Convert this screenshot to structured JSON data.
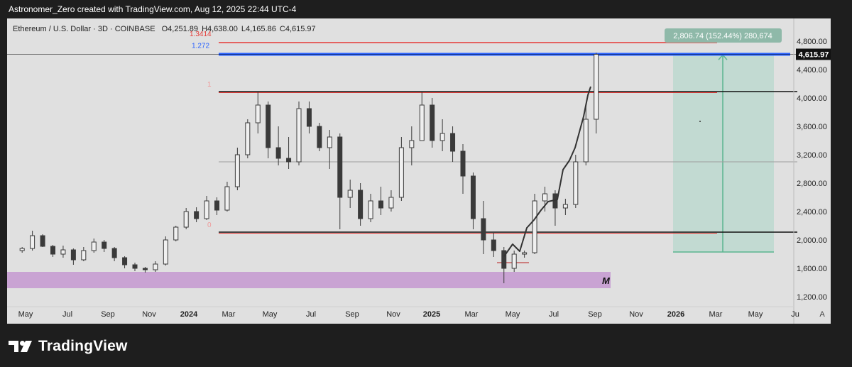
{
  "header": {
    "caption": "Astronomer_Zero created with TradingView.com, Aug 12, 2025 22:44 UTC-4"
  },
  "symbol": {
    "name": "Ethereum / U.S. Dollar",
    "interval": "3D",
    "exchange": "COINBASE",
    "open": "O4,251.89",
    "high": "H4,638.00",
    "low": "L4,165.86",
    "close": "C4,615.97"
  },
  "fib_labels": {
    "f1_3414": "1.3414",
    "f1_272": "1.272",
    "f1": "1",
    "f0": "0"
  },
  "measure_label": "2,806.74 (152.44%) 280,674",
  "price_tag": "4,615.97",
  "zone_label": "M",
  "footer": {
    "brand": "TradingView"
  },
  "colors": {
    "background": "#e0e0e0",
    "frame": "#1e1e1e",
    "candle": "#3a3a3a",
    "fib_red": "#e53935",
    "fib_blue": "#2962ff",
    "zone": "#c9a3d3",
    "measure_fill": "#bcd8cf",
    "measure_line": "#5bb58f"
  },
  "chart_data": {
    "type": "candlestick",
    "x_ticks": [
      "May",
      "Jul",
      "Sep",
      "Nov",
      "2024",
      "Mar",
      "May",
      "Jul",
      "Sep",
      "Nov",
      "2025",
      "Mar",
      "May",
      "Jul",
      "Sep",
      "Nov",
      "2026",
      "Mar",
      "May",
      "Ju"
    ],
    "y_ticks": [
      "4,800.00",
      "4,400.00",
      "4,000.00",
      "3,600.00",
      "3,200.00",
      "2,800.00",
      "2,400.00",
      "2,000.00",
      "1,600.00",
      "1,200.00"
    ],
    "ylim": [
      1000,
      5100
    ],
    "last_price": 4615.97,
    "horizontal_levels": [
      {
        "name": "fib 1.3414",
        "price": 4780,
        "color": "#e53935"
      },
      {
        "name": "fib 1.272",
        "price": 4615,
        "color": "#2962ff"
      },
      {
        "name": "fib 1 resistance",
        "price": 4090,
        "color": "#111111"
      },
      {
        "name": "mid level",
        "price": 3100,
        "color": "#9e9e9e"
      },
      {
        "name": "fib 0 support",
        "price": 2110,
        "color": "#111111"
      }
    ],
    "zone": {
      "low": 1320,
      "high": 1550,
      "color": "#c9a3d3"
    },
    "measure": {
      "from": 1830,
      "to": 4637,
      "change": 2806.74,
      "percent": 152.44
    },
    "series": [
      {
        "values": [
          [
            "2023-04-26",
            1850,
            1900,
            1820,
            1880
          ],
          [
            "2023-05-11",
            1880,
            2130,
            1850,
            2060
          ],
          [
            "2023-05-26",
            2060,
            2080,
            1900,
            1910
          ],
          [
            "2023-06-10",
            1910,
            1930,
            1760,
            1800
          ],
          [
            "2023-06-25",
            1800,
            1920,
            1750,
            1860
          ],
          [
            "2023-07-10",
            1860,
            1880,
            1650,
            1720
          ],
          [
            "2023-07-25",
            1720,
            1900,
            1700,
            1850
          ],
          [
            "2023-08-09",
            1850,
            2020,
            1820,
            1970
          ],
          [
            "2023-08-24",
            1970,
            2000,
            1830,
            1880
          ],
          [
            "2023-09-08",
            1880,
            1900,
            1700,
            1750
          ],
          [
            "2023-09-23",
            1750,
            1770,
            1600,
            1650
          ],
          [
            "2023-10-08",
            1650,
            1680,
            1560,
            1600
          ],
          [
            "2023-10-23",
            1600,
            1620,
            1540,
            1580
          ],
          [
            "2023-11-07",
            1580,
            1700,
            1550,
            1660
          ],
          [
            "2023-11-22",
            1660,
            2050,
            1640,
            2000
          ],
          [
            "2023-12-07",
            2000,
            2200,
            1980,
            2180
          ],
          [
            "2023-12-22",
            2180,
            2450,
            2150,
            2400
          ],
          [
            "2024-01-06",
            2400,
            2460,
            2250,
            2300
          ],
          [
            "2024-01-21",
            2300,
            2620,
            2280,
            2550
          ],
          [
            "2024-02-05",
            2550,
            2600,
            2350,
            2420
          ],
          [
            "2024-02-20",
            2420,
            2820,
            2400,
            2750
          ],
          [
            "2024-03-06",
            2750,
            3300,
            2700,
            3200
          ],
          [
            "2024-03-21",
            3200,
            3700,
            3150,
            3650
          ],
          [
            "2024-04-05",
            3650,
            4090,
            3500,
            3900
          ],
          [
            "2024-04-20",
            3900,
            3950,
            3150,
            3300
          ],
          [
            "2024-05-05",
            3300,
            3600,
            3050,
            3150
          ],
          [
            "2024-05-20",
            3150,
            3450,
            3000,
            3100
          ],
          [
            "2024-06-04",
            3100,
            3950,
            3050,
            3850
          ],
          [
            "2024-06-19",
            3850,
            3950,
            3500,
            3600
          ],
          [
            "2024-07-04",
            3600,
            3650,
            3250,
            3300
          ],
          [
            "2024-07-19",
            3300,
            3550,
            3000,
            3450
          ],
          [
            "2024-08-03",
            3450,
            3500,
            2150,
            2600
          ],
          [
            "2024-08-18",
            2600,
            2850,
            2450,
            2700
          ],
          [
            "2024-09-02",
            2700,
            2800,
            2200,
            2300
          ],
          [
            "2024-09-17",
            2300,
            2650,
            2250,
            2550
          ],
          [
            "2024-10-02",
            2550,
            2750,
            2350,
            2450
          ],
          [
            "2024-10-17",
            2450,
            2700,
            2400,
            2600
          ],
          [
            "2024-11-01",
            2600,
            3450,
            2550,
            3300
          ],
          [
            "2024-11-16",
            3300,
            3600,
            3050,
            3400
          ],
          [
            "2024-12-01",
            3400,
            4090,
            3400,
            3900
          ],
          [
            "2024-12-16",
            3900,
            4000,
            3300,
            3400
          ],
          [
            "2024-12-31",
            3400,
            3700,
            3250,
            3500
          ],
          [
            "2025-01-15",
            3500,
            3600,
            3100,
            3250
          ],
          [
            "2025-01-30",
            3250,
            3350,
            2650,
            2900
          ],
          [
            "2025-02-14",
            2900,
            2950,
            2150,
            2300
          ],
          [
            "2025-03-01",
            2300,
            2550,
            1800,
            2000
          ],
          [
            "2025-03-16",
            2000,
            2100,
            1760,
            1850
          ],
          [
            "2025-03-31",
            1850,
            1900,
            1390,
            1600
          ],
          [
            "2025-04-15",
            1600,
            1850,
            1550,
            1800
          ],
          [
            "2025-04-30",
            1800,
            1850,
            1750,
            1820
          ],
          [
            "2025-05-15",
            1820,
            2650,
            1800,
            2550
          ],
          [
            "2025-05-30",
            2550,
            2750,
            2400,
            2650
          ],
          [
            "2025-06-14",
            2650,
            2700,
            2200,
            2450
          ],
          [
            "2025-06-29",
            2450,
            2580,
            2350,
            2500
          ],
          [
            "2025-07-14",
            2500,
            3200,
            2450,
            3100
          ],
          [
            "2025-07-29",
            3100,
            3900,
            3050,
            3700
          ],
          [
            "2025-08-13",
            3700,
            4638,
            3500,
            4615
          ]
        ]
      }
    ]
  }
}
